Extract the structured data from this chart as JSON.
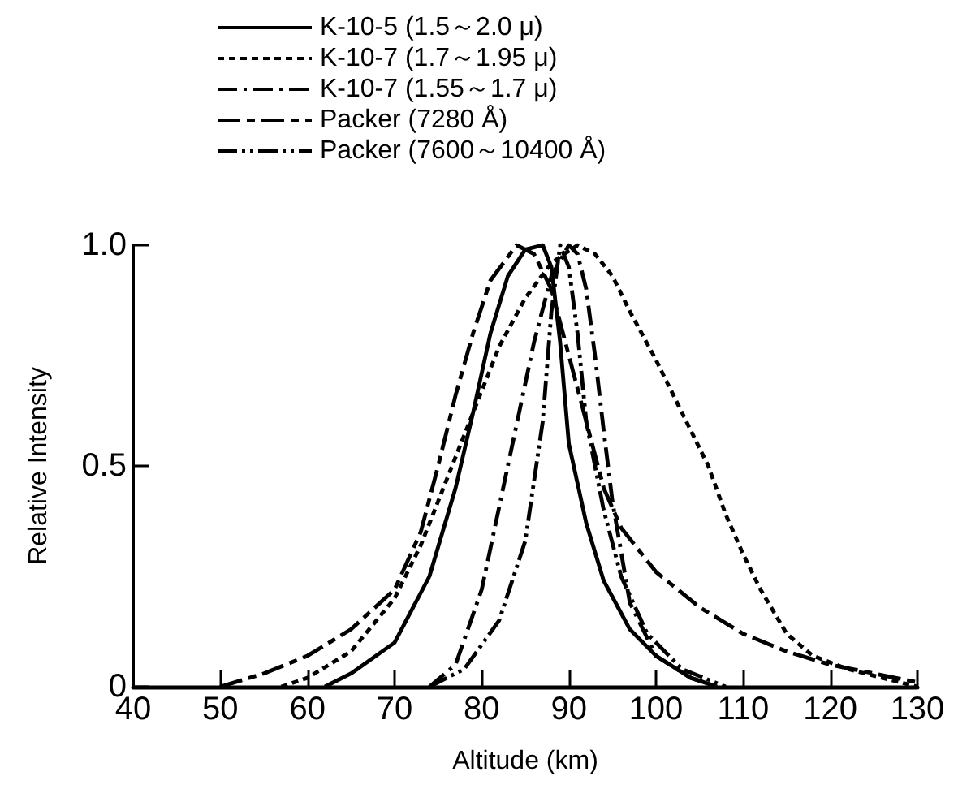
{
  "chart_data": {
    "type": "line",
    "xlabel": "Altitude (km)",
    "ylabel": "Relative Intensity",
    "xlim": [
      40,
      130
    ],
    "xticks": [
      40,
      50,
      60,
      70,
      80,
      90,
      100,
      110,
      120,
      130
    ],
    "ylim": [
      0,
      1
    ],
    "yticks": [
      0,
      0.5,
      {
        "value": 1,
        "label": "1.0"
      }
    ],
    "grid": false,
    "legend": "top",
    "marker": "none",
    "series": [
      {
        "name": "K-10-5 (1.5～2.0 μ)",
        "color": "#000000",
        "line_style": "solid",
        "x": [
          62,
          65,
          70,
          74,
          77,
          79,
          81,
          83,
          85,
          87,
          88,
          89,
          90,
          92,
          94,
          97,
          100,
          104,
          107
        ],
        "values": [
          0,
          0.03,
          0.1,
          0.25,
          0.45,
          0.62,
          0.8,
          0.93,
          0.99,
          1,
          0.95,
          0.78,
          0.55,
          0.37,
          0.24,
          0.13,
          0.07,
          0.02,
          0
        ]
      },
      {
        "name": "K-10-7 (1.7～1.95 μ)",
        "color": "#000000",
        "line_style": "dotted",
        "x": [
          57,
          60,
          65,
          70,
          73,
          76,
          79,
          82,
          85,
          88,
          91,
          93,
          95,
          97,
          100,
          103,
          106,
          108,
          110,
          112,
          115,
          118,
          122,
          126,
          130
        ],
        "values": [
          0,
          0.02,
          0.08,
          0.2,
          0.32,
          0.47,
          0.62,
          0.77,
          0.88,
          0.96,
          1,
          0.98,
          0.93,
          0.85,
          0.74,
          0.62,
          0.5,
          0.39,
          0.3,
          0.22,
          0.12,
          0.07,
          0.04,
          0.02,
          0
        ]
      },
      {
        "name": "K-10-7 (1.55～1.7 μ)",
        "color": "#000000",
        "line_style": "dashdot",
        "x": [
          74,
          77,
          80,
          83,
          86,
          88,
          90,
          91,
          92,
          93,
          94,
          95,
          97,
          100,
          104,
          107
        ],
        "values": [
          0,
          0.05,
          0.22,
          0.5,
          0.78,
          0.93,
          1,
          0.98,
          0.9,
          0.75,
          0.58,
          0.42,
          0.19,
          0.07,
          0.02,
          0
        ]
      },
      {
        "name": "Packer (7280 Å)",
        "color": "#000000",
        "line_style": "longdash",
        "x": [
          50,
          55,
          60,
          65,
          70,
          73,
          75,
          77,
          79,
          81,
          84,
          86,
          88,
          90,
          92,
          94,
          96,
          100,
          105,
          110,
          115,
          120,
          125,
          130
        ],
        "values": [
          0,
          0.03,
          0.07,
          0.13,
          0.22,
          0.35,
          0.5,
          0.66,
          0.8,
          0.92,
          1,
          0.98,
          0.9,
          0.75,
          0.6,
          0.45,
          0.36,
          0.26,
          0.18,
          0.12,
          0.08,
          0.05,
          0.03,
          0.01
        ]
      },
      {
        "name": "Packer (7600～10400 Å)",
        "color": "#000000",
        "line_style": "dashdotdot",
        "x": [
          74,
          78,
          82,
          85,
          87,
          88,
          89,
          90,
          91,
          92,
          94,
          96,
          99,
          103,
          108
        ],
        "values": [
          0,
          0.04,
          0.15,
          0.33,
          0.6,
          0.85,
          1,
          0.95,
          0.8,
          0.6,
          0.4,
          0.25,
          0.12,
          0.04,
          0
        ]
      }
    ]
  }
}
